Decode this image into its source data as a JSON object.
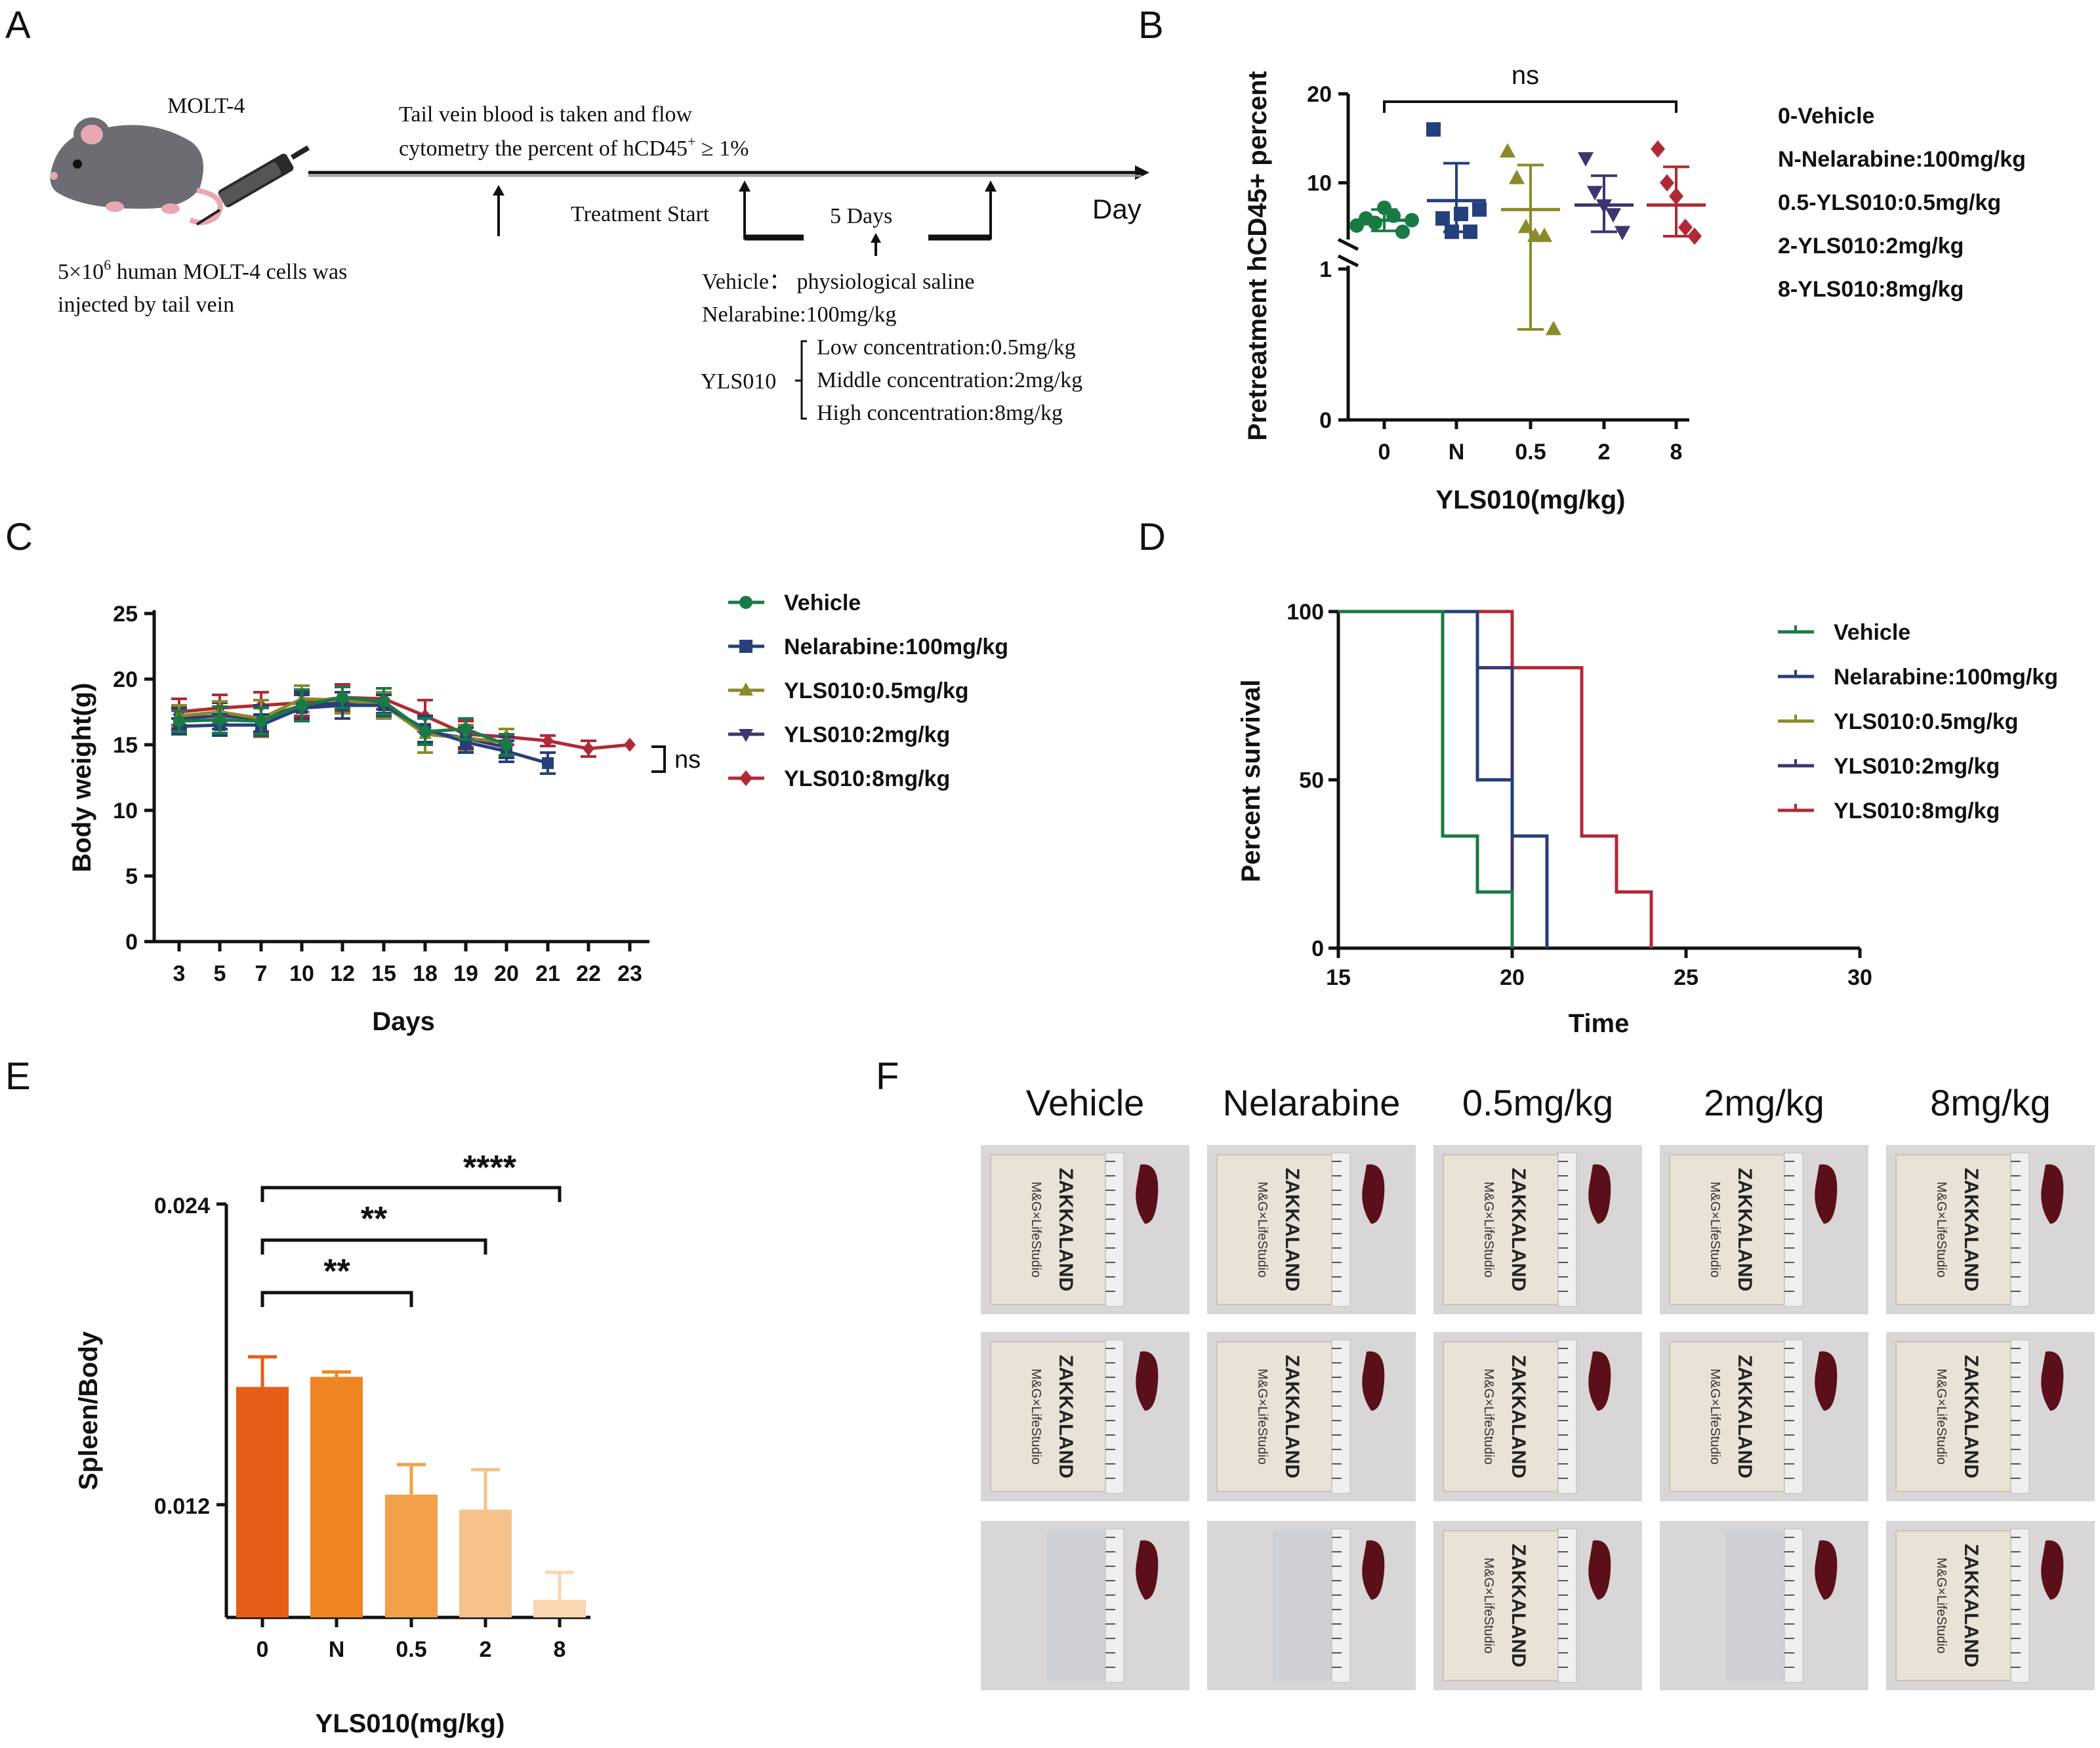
{
  "panel_labels": {
    "A": "A",
    "B": "B",
    "C": "C",
    "D": "D",
    "E": "E",
    "F": "F"
  },
  "panelA": {
    "mouse_label": "MOLT-4",
    "injection_line1": "5×10",
    "injection_sup": "6",
    "injection_line1_rest": " human MOLT-4 cells was",
    "injection_line2": "injected by tail vein",
    "blood_line1": "Tail vein blood is taken and flow",
    "blood_line2_pre": "cytometry the percent of hCD45",
    "blood_line2_sup": "+",
    "blood_line2_post": " ≥ 1%",
    "treatment_start": "Treatment Start",
    "five_days": "5 Days",
    "day": "Day",
    "vehicle": "Vehicle： physiological saline",
    "nelarabine": "Nelarabine:100mg/kg",
    "yls010": "YLS010",
    "low": "Low concentration:0.5mg/kg",
    "middle": "Middle concentration:2mg/kg",
    "high": "High concentration:8mg/kg"
  },
  "colors": {
    "vehicle": "#1a7a45",
    "nelarabine": "#25407a",
    "yls05": "#8a8a2a",
    "yls2": "#3b3670",
    "yls8": "#b02a35",
    "barE": [
      "#e85d18",
      "#ef8422",
      "#f2a04a",
      "#f6c28a",
      "#f9d5b0"
    ]
  },
  "chart_data": [
    {
      "id": "B",
      "type": "scatter",
      "ylabel": "Pretreatment hCD45+ percent",
      "xlabel": "YLS010(mg/kg)",
      "categories": [
        "0",
        "N",
        "0.5",
        "2",
        "8"
      ],
      "yticks_upper": [
        "20",
        "10"
      ],
      "yticks_lower": [
        "1",
        "0"
      ],
      "y_segments": [
        {
          "range": [
            0,
            1
          ]
        },
        {
          "range": [
            4,
            20
          ]
        }
      ],
      "significance": "ns",
      "points": [
        [
          5.2,
          6.0,
          5.5,
          7.2,
          6.3,
          4.5,
          5.8
        ],
        [
          16.0,
          6.0,
          4.5,
          6.5,
          4.5,
          7.0
        ],
        [
          13.5,
          10.5,
          5.0,
          4.0,
          4.0,
          0.6
        ],
        [
          12.8,
          9.0,
          7.5,
          6.5,
          4.5
        ],
        [
          13.8,
          10.0,
          8.5,
          5.0,
          4.0
        ]
      ],
      "means": [
        5.8,
        8.0,
        7.0,
        7.5,
        7.5
      ],
      "sd_upper": [
        7.0,
        12.2,
        12.0,
        10.8,
        11.8
      ],
      "sd_lower": [
        4.6,
        4.5,
        0.6,
        4.5,
        4.0
      ],
      "legend": [
        "0-Vehicle",
        "N-Nelarabine:100mg/kg",
        "0.5-YLS010:0.5mg/kg",
        "2-YLS010:2mg/kg",
        "8-YLS010:8mg/kg"
      ]
    },
    {
      "id": "C",
      "type": "line",
      "ylabel": "Body weight(g)",
      "xlabel": "Days",
      "x_labels": [
        "3",
        "5",
        "7",
        "10",
        "12",
        "15",
        "18",
        "19",
        "20",
        "21",
        "22",
        "23"
      ],
      "ylim": [
        0,
        25
      ],
      "yticks": [
        0,
        5,
        10,
        15,
        20,
        25
      ],
      "ns_label": "ns",
      "series": [
        {
          "name": "Vehicle",
          "values": [
            16.8,
            16.9,
            16.8,
            18.0,
            18.6,
            18.3,
            16.0,
            16.2,
            15.0
          ],
          "err": [
            0.8,
            1.0,
            1.0,
            1.2,
            0.8,
            1.0,
            1.0,
            0.8,
            0.8
          ]
        },
        {
          "name": "Nelarabine:100mg/kg",
          "values": [
            16.4,
            16.5,
            16.5,
            17.8,
            18.0,
            18.0,
            16.2,
            15.2,
            14.5,
            13.6
          ],
          "err": [
            0.6,
            0.8,
            0.8,
            1.0,
            1.0,
            0.8,
            1.0,
            0.8,
            0.8,
            0.8
          ]
        },
        {
          "name": "YLS010:0.5mg/kg",
          "values": [
            17.2,
            17.5,
            17.0,
            18.5,
            18.4,
            18.0,
            15.8,
            15.5,
            15.2
          ],
          "err": [
            0.8,
            0.8,
            1.4,
            1.0,
            1.0,
            1.0,
            1.4,
            1.0,
            1.0
          ]
        },
        {
          "name": "YLS010:2mg/kg",
          "values": [
            17.0,
            17.2,
            17.0,
            18.0,
            18.2,
            18.2,
            16.0,
            15.5,
            14.8
          ],
          "err": [
            0.8,
            1.0,
            1.0,
            1.0,
            0.8,
            0.8,
            1.0,
            0.8,
            0.8
          ]
        },
        {
          "name": "YLS010:8mg/kg",
          "values": [
            17.5,
            17.8,
            18.0,
            18.2,
            18.6,
            18.5,
            17.2,
            15.8,
            15.6,
            15.3,
            14.7,
            15.0
          ],
          "err": [
            1.0,
            1.0,
            1.0,
            1.0,
            1.0,
            0.8,
            1.2,
            1.0,
            0.6,
            0.4,
            0.6,
            0
          ]
        }
      ]
    },
    {
      "id": "D",
      "type": "line",
      "ylabel": "Percent survival",
      "xlabel": "Time",
      "xlim": [
        15,
        30
      ],
      "xticks": [
        15,
        20,
        25,
        30
      ],
      "ylim": [
        0,
        100
      ],
      "yticks": [
        0,
        50,
        100
      ],
      "series": [
        {
          "name": "Vehicle",
          "steps": [
            [
              15,
              100
            ],
            [
              18,
              33.3
            ],
            [
              19,
              16.7
            ],
            [
              20,
              0
            ]
          ]
        },
        {
          "name": "Nelarabine:100mg/kg",
          "steps": [
            [
              15,
              100
            ],
            [
              19,
              50
            ],
            [
              20,
              33.3
            ],
            [
              21,
              0
            ]
          ]
        },
        {
          "name": "YLS010:0.5mg/kg",
          "steps": []
        },
        {
          "name": "YLS010:2mg/kg",
          "steps": [
            [
              15,
              100
            ],
            [
              19,
              83.3
            ],
            [
              20,
              0
            ]
          ]
        },
        {
          "name": "YLS010:8mg/kg",
          "steps": [
            [
              15,
              100
            ],
            [
              20,
              83.3
            ],
            [
              22,
              33.3
            ],
            [
              23,
              16.7
            ],
            [
              24,
              0
            ]
          ]
        }
      ]
    },
    {
      "id": "E",
      "type": "bar",
      "ylabel": "Spleen/Body",
      "xlabel": "YLS010(mg/kg)",
      "categories": [
        "0",
        "N",
        "0.5",
        "2",
        "8"
      ],
      "values": [
        0.0167,
        0.0171,
        0.0124,
        0.0118,
        0.0082
      ],
      "err": [
        0.0012,
        0.0002,
        0.0012,
        0.0016,
        0.0011
      ],
      "ylim": [
        0.0075,
        0.024
      ],
      "yticks": [
        "0.024",
        "0.012"
      ],
      "significance": [
        {
          "from": "0",
          "to": "0.5",
          "label": "**"
        },
        {
          "from": "0",
          "to": "2",
          "label": "**"
        },
        {
          "from": "0",
          "to": "8",
          "label": "****"
        }
      ]
    }
  ],
  "panelF": {
    "columns": [
      "Vehicle",
      "Nelarabine",
      "0.5mg/kg",
      "2mg/kg",
      "8mg/kg"
    ],
    "rows": 3,
    "box_text": "ZAKKALAND",
    "box_sub": "M&G×LifeStudio"
  }
}
